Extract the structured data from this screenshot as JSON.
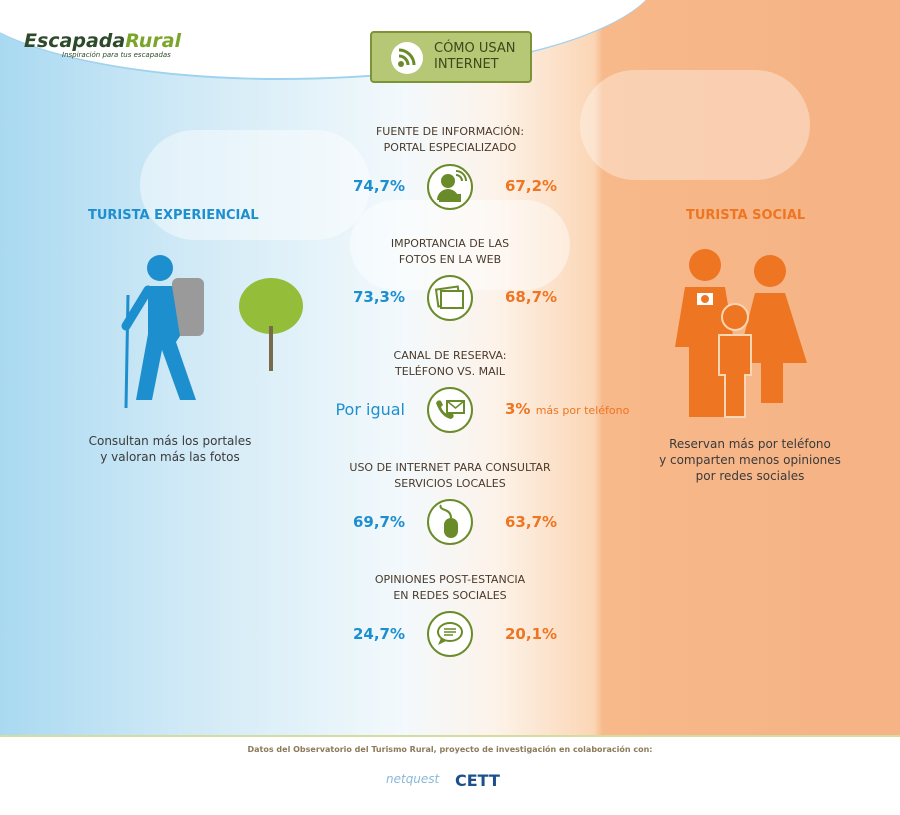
{
  "logo": {
    "name_a": "Escapada",
    "name_b": "Rural",
    "tagline": "Inspiración para tus escapadas"
  },
  "title": {
    "line1": "CÓMO USAN",
    "line2": "INTERNET",
    "icon": "wifi-icon"
  },
  "left": {
    "label": "TURISTA EXPERIENCIAL",
    "description1": "Consultan más los portales",
    "description2": "y valoran más las fotos",
    "color": "#1d8fcf"
  },
  "right": {
    "label": "TURISTA SOCIAL",
    "description1": "Reservan más por teléfono",
    "description2": "y comparten menos opiniones",
    "description3": "por redes sociales",
    "color": "#ee7521"
  },
  "rows": [
    {
      "title1": "FUENTE DE INFORMACIÓN:",
      "title2": "PORTAL ESPECIALIZADO",
      "left": "74,7%",
      "right": "67,2%",
      "icon": "user-computer-icon"
    },
    {
      "title1": "IMPORTANCIA DE LAS",
      "title2": "FOTOS EN LA WEB",
      "left": "73,3%",
      "right": "68,7%",
      "icon": "photos-icon"
    },
    {
      "title1": "CANAL DE RESERVA:",
      "title2": "TELÉFONO VS. MAIL",
      "left": "Por igual",
      "right": "3%",
      "right_suffix": "más por teléfono",
      "icon": "phone-mail-icon"
    },
    {
      "title1": "USO DE INTERNET PARA CONSULTAR",
      "title2": "SERVICIOS LOCALES",
      "left": "69,7%",
      "right": "63,7%",
      "icon": "mouse-icon"
    },
    {
      "title1": "OPINIONES POST-ESTANCIA",
      "title2": "EN REDES SOCIALES",
      "left": "24,7%",
      "right": "20,1%",
      "icon": "chat-bubble-icon"
    }
  ],
  "footer": {
    "text": "Datos del Observatorio del Turismo Rural, proyecto de investigación en colaboración con:",
    "partner1": "netquest",
    "partner2": "CETT"
  }
}
